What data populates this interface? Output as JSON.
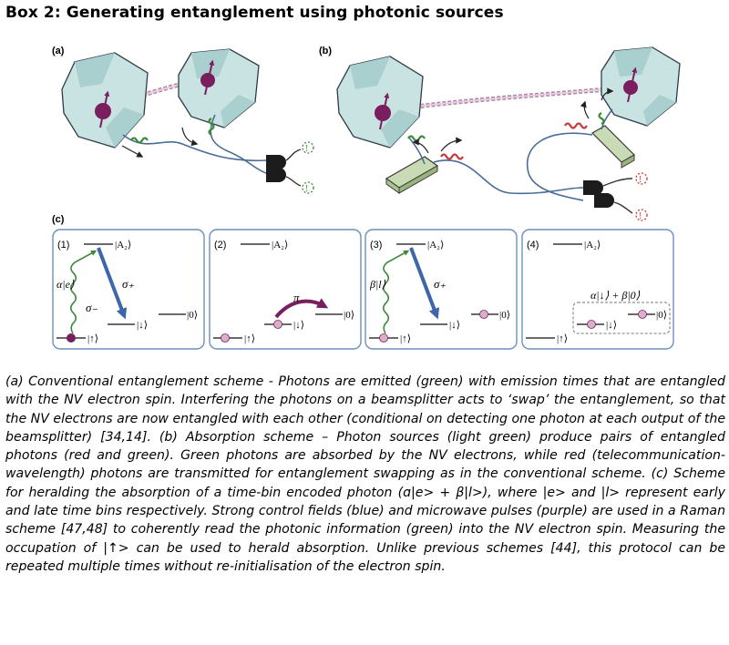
{
  "box_title": "Box 2: Generating entanglement using photonic sources",
  "panel_labels": {
    "a": "(a)",
    "b": "(b)",
    "c": "(c)"
  },
  "step_labels": [
    "(1)",
    "(2)",
    "(3)",
    "(4)"
  ],
  "levels": {
    "excited": "|A₂⟩",
    "up": "|↑⟩",
    "down": "|↓⟩",
    "zero": "|0⟩"
  },
  "symbols": {
    "alpha_e": "α|e⟩",
    "beta_l": "β|l⟩",
    "sigma_plus": "σ₊",
    "sigma_minus": "σ₋",
    "pi": "π",
    "superposition": "α|↓⟩ + β|0⟩"
  },
  "colors": {
    "emission_green": "#3f8a3a",
    "telecom_red": "#c93a3a",
    "control_blue": "#3e66a8",
    "microwave_purple": "#7a1f5e",
    "crystal": "#c8e3e2",
    "source_green": "#c9dbb4",
    "panel_border": "#6d8fbf"
  },
  "caption": "(a) Conventional entanglement scheme - Photons are emitted (green) with emission times that are entangled with the NV electron spin. Interfering the photons on a beamsplitter acts to ‘swap’ the entanglement, so that the NV electrons are now entangled with each other (conditional on detecting one photon at each output of the beamsplitter) [34,14]. (b) Absorption scheme – Photon sources (light green) produce pairs of entangled photons (red and green). Green photons are absorbed by the NV electrons, while red (telecommunication-wavelength) photons are transmitted for entanglement swapping as in the conventional scheme. (c) Scheme for heralding the absorption of a time-bin encoded photon (ɑ|e> + β|l>), where |e> and |l> represent early and late time bins respectively. Strong control fields (blue) and microwave pulses (purple) are used in a Raman scheme [47,48] to coherently read the photonic information (green) into the NV electron spin. Measuring the occupation of |↑> can be used to herald absorption. Unlike previous schemes [44], this protocol can be repeated multiple times without re-initialisation of the electron spin."
}
